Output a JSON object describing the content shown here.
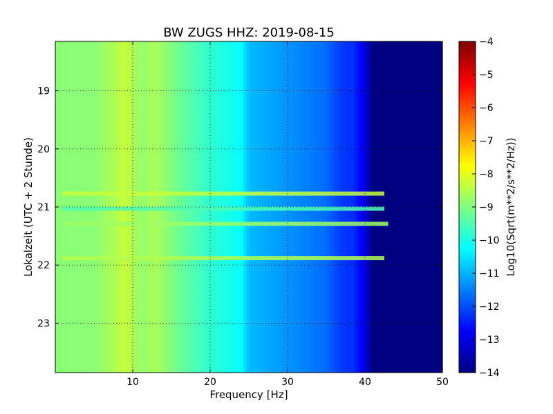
{
  "chart_data": {
    "type": "heatmap",
    "title": "BW ZUGS HHZ: 2019-08-15",
    "xlabel": "Frequency [Hz]",
    "ylabel": "Lokalzeit (UTC + 2 Stunde)",
    "xlim": [
      0,
      50
    ],
    "ylim": [
      18.15,
      23.85
    ],
    "y_inverted": true,
    "xticks": [
      10,
      20,
      30,
      40,
      50
    ],
    "yticks": [
      19,
      20,
      21,
      22,
      23
    ],
    "grid": true,
    "colorbar": {
      "label": "Log10(Sqrt(m**2/s**2/Hz))",
      "range": [
        -14,
        -4
      ],
      "ticks": [
        -4,
        -5,
        -6,
        -7,
        -8,
        -9,
        -10,
        -11,
        -12,
        -13,
        -14
      ],
      "colormap": "jet"
    },
    "spectrum_profile": {
      "frequency_hz": [
        0,
        5,
        8,
        9,
        11,
        13,
        16,
        20,
        24,
        25,
        30,
        35,
        37,
        38.5,
        40,
        41,
        50
      ],
      "log_amplitude": [
        -8.9,
        -8.9,
        -8.5,
        -8.3,
        -8.8,
        -8.6,
        -9.2,
        -9.8,
        -10.2,
        -10.9,
        -11.3,
        -11.7,
        -12.2,
        -12.3,
        -13.0,
        -14.0,
        -14.0
      ]
    },
    "transient_bands": [
      {
        "time": 20.77,
        "level": -8.3,
        "max_frequency_hz": 42.5
      },
      {
        "time": 21.03,
        "level": -9.5,
        "max_frequency_hz": 42.5
      },
      {
        "time": 21.29,
        "level": -8.7,
        "max_frequency_hz": 43.0
      },
      {
        "time": 21.88,
        "level": -8.5,
        "max_frequency_hz": 42.5
      }
    ]
  }
}
